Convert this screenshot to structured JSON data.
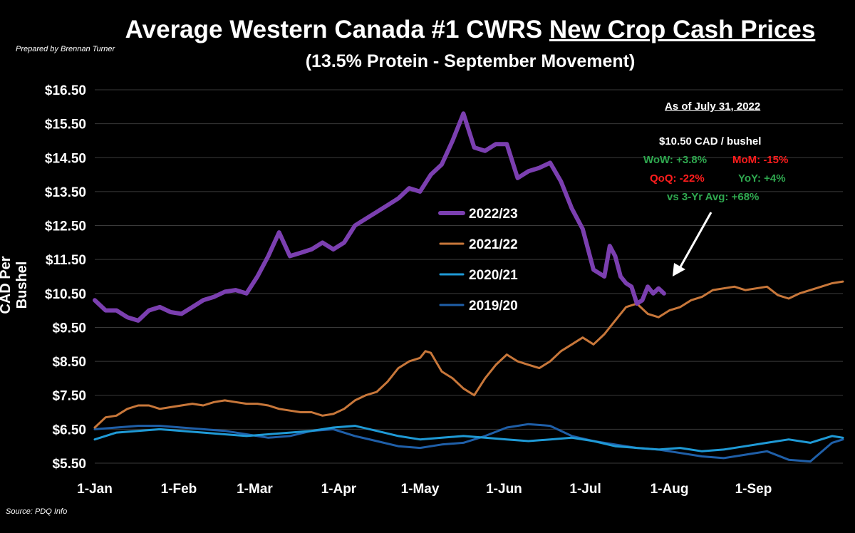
{
  "chart_data": {
    "type": "line",
    "title": "Average Western Canada #1 CWRS New Crop Cash Prices",
    "title_plain": "Average Western Canada #1 CWRS",
    "title_underlined": "New Crop Cash Prices",
    "subtitle": "(13.5% Protein - September Movement)",
    "ylabel": "CAD Per Bushel",
    "xlabel": "",
    "ylim": [
      5.5,
      16.5
    ],
    "yticks": [
      "$16.50",
      "$15.50",
      "$14.50",
      "$13.50",
      "$12.50",
      "$11.50",
      "$10.50",
      "$9.50",
      "$8.50",
      "$7.50",
      "$6.50",
      "$5.50"
    ],
    "xticks": [
      "1-Jan",
      "1-Feb",
      "1-Mar",
      "1-Apr",
      "1-May",
      "1-Jun",
      "1-Jul",
      "1-Aug",
      "1-Sep"
    ],
    "xtick_days": [
      0,
      31,
      59,
      90,
      120,
      151,
      181,
      212,
      243
    ],
    "x_domain_days": [
      0,
      276
    ],
    "grid": true,
    "legend_position": "center",
    "series": [
      {
        "name": "2022/23",
        "color": "#7b3fb0",
        "x_days": [
          0,
          4,
          8,
          12,
          16,
          20,
          24,
          28,
          32,
          36,
          40,
          44,
          48,
          52,
          56,
          60,
          64,
          68,
          72,
          76,
          80,
          84,
          88,
          92,
          96,
          100,
          104,
          108,
          112,
          116,
          120,
          124,
          128,
          132,
          136,
          140,
          144,
          148,
          152,
          156,
          160,
          164,
          168,
          172,
          176,
          180,
          184,
          188,
          190,
          192,
          194,
          196,
          198,
          200,
          202,
          204,
          206,
          208,
          210
        ],
        "values": [
          10.3,
          10.0,
          10.0,
          9.8,
          9.7,
          10.0,
          10.1,
          9.95,
          9.9,
          10.1,
          10.3,
          10.4,
          10.55,
          10.6,
          10.5,
          11.0,
          11.6,
          12.3,
          11.6,
          11.7,
          11.8,
          12.0,
          11.8,
          12.0,
          12.5,
          12.7,
          12.9,
          13.1,
          13.3,
          13.6,
          13.5,
          14.0,
          14.3,
          15.0,
          15.8,
          14.8,
          14.7,
          14.9,
          14.9,
          13.9,
          14.1,
          14.2,
          14.35,
          13.8,
          13.0,
          12.4,
          11.2,
          11.0,
          11.9,
          11.6,
          11.0,
          10.8,
          10.7,
          10.2,
          10.3,
          10.7,
          10.5,
          10.65,
          10.5
        ]
      },
      {
        "name": "2021/22",
        "color": "#c8773a",
        "x_days": [
          0,
          4,
          8,
          12,
          16,
          20,
          24,
          28,
          32,
          36,
          40,
          44,
          48,
          52,
          56,
          60,
          64,
          68,
          72,
          76,
          80,
          84,
          88,
          92,
          96,
          100,
          104,
          108,
          112,
          116,
          120,
          122,
          124,
          128,
          132,
          136,
          140,
          144,
          148,
          152,
          156,
          160,
          164,
          168,
          172,
          176,
          180,
          184,
          188,
          192,
          196,
          200,
          204,
          208,
          212,
          216,
          220,
          224,
          228,
          232,
          236,
          240,
          244,
          248,
          252,
          256,
          260,
          264,
          268,
          272,
          276
        ],
        "values": [
          6.55,
          6.85,
          6.9,
          7.1,
          7.2,
          7.2,
          7.1,
          7.15,
          7.2,
          7.25,
          7.2,
          7.3,
          7.35,
          7.3,
          7.25,
          7.25,
          7.2,
          7.1,
          7.05,
          7.0,
          7.0,
          6.9,
          6.95,
          7.1,
          7.35,
          7.5,
          7.6,
          7.9,
          8.3,
          8.5,
          8.6,
          8.8,
          8.75,
          8.2,
          8.0,
          7.7,
          7.5,
          8.0,
          8.4,
          8.7,
          8.5,
          8.4,
          8.3,
          8.5,
          8.8,
          9.0,
          9.2,
          9.0,
          9.3,
          9.7,
          10.1,
          10.2,
          9.9,
          9.8,
          10.0,
          10.1,
          10.3,
          10.4,
          10.6,
          10.65,
          10.7,
          10.6,
          10.65,
          10.7,
          10.45,
          10.35,
          10.5,
          10.6,
          10.7,
          10.8,
          10.85
        ]
      },
      {
        "name": "2020/21",
        "color": "#1f9ad6",
        "x_days": [
          0,
          8,
          16,
          24,
          32,
          40,
          48,
          56,
          64,
          72,
          80,
          88,
          96,
          104,
          112,
          120,
          128,
          136,
          144,
          152,
          160,
          168,
          176,
          184,
          192,
          200,
          208,
          216,
          224,
          232,
          240,
          248,
          256,
          264,
          272,
          276
        ],
        "values": [
          6.2,
          6.4,
          6.45,
          6.5,
          6.45,
          6.4,
          6.35,
          6.3,
          6.35,
          6.4,
          6.45,
          6.55,
          6.6,
          6.45,
          6.3,
          6.2,
          6.25,
          6.3,
          6.25,
          6.2,
          6.15,
          6.2,
          6.25,
          6.15,
          6.0,
          5.95,
          5.9,
          5.95,
          5.85,
          5.9,
          6.0,
          6.1,
          6.2,
          6.1,
          6.3,
          6.25
        ]
      },
      {
        "name": "2019/20",
        "color": "#1f5fa8",
        "x_days": [
          0,
          8,
          16,
          24,
          32,
          40,
          48,
          56,
          64,
          72,
          80,
          88,
          96,
          104,
          112,
          120,
          128,
          136,
          144,
          152,
          160,
          168,
          176,
          184,
          192,
          200,
          208,
          216,
          224,
          232,
          240,
          248,
          256,
          264,
          272,
          276
        ],
        "values": [
          6.5,
          6.55,
          6.6,
          6.6,
          6.55,
          6.5,
          6.45,
          6.35,
          6.25,
          6.3,
          6.45,
          6.5,
          6.3,
          6.15,
          6.0,
          5.95,
          6.05,
          6.1,
          6.3,
          6.55,
          6.65,
          6.6,
          6.3,
          6.15,
          6.05,
          5.95,
          5.9,
          5.8,
          5.7,
          5.65,
          5.75,
          5.85,
          5.6,
          5.55,
          6.1,
          6.2
        ]
      }
    ],
    "annotations": {
      "as_of": "As of July 31, 2022",
      "price": "$10.50 CAD / bushel",
      "wow": "WoW: +3.8%",
      "mom": "MoM: -15%",
      "qoq": "QoQ: -22%",
      "yoy": "YoY: +4%",
      "vs_avg": "vs 3-Yr Avg: +68%",
      "positive_color": "#2fa84f",
      "negative_color": "#ff1d1d"
    }
  },
  "credit": "Prepared by Brennan Turner",
  "source": "Source: PDQ Info"
}
